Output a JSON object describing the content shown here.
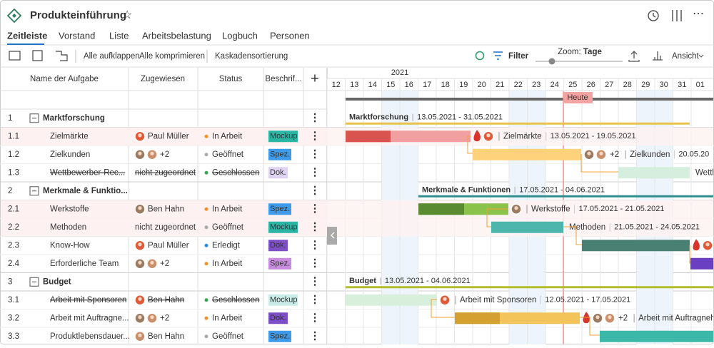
{
  "header": {
    "title": "Produkteinführung"
  },
  "tabs": [
    "Zeitleiste",
    "Vorstand",
    "Liste",
    "Arbeitsbelastung",
    "Logbuch",
    "Personen"
  ],
  "toolbar": {
    "expand": "Alle aufklappen",
    "collapse": "Alle komprimieren",
    "cascade": "Kaskadensortierung",
    "filter": "Filter",
    "zoom_label": "Zoom:",
    "zoom_value": "Tage",
    "view": "Ansicht"
  },
  "table": {
    "columns": [
      "Name der Aufgabe",
      "Zugewiesen",
      "Status",
      "Beschrif..."
    ],
    "rows": [
      {
        "num": "1",
        "name": "Marktforschung"
      },
      {
        "num": "1.1",
        "name": "Zielmärkte",
        "assignee": "Paul Müller",
        "status": "In Arbeit",
        "tag": "Mockup"
      },
      {
        "num": "1.2",
        "name": "Zielkunden",
        "assignee": "+2",
        "status": "Geöffnet",
        "tag": "Spez."
      },
      {
        "num": "1.3",
        "name": "Wettbewerber-Rec...",
        "assignee": "nicht zugeordnet",
        "status": "Geschlossen",
        "tag": "Dok."
      },
      {
        "num": "2",
        "name": "Merkmale & Funktio..."
      },
      {
        "num": "2.1",
        "name": "Werkstoffe",
        "assignee": "Ben Hahn",
        "status": "In Arbeit",
        "tag": "Spez."
      },
      {
        "num": "2.2",
        "name": "Methoden",
        "assignee": "nicht zugeordnet",
        "status": "Geöffnet",
        "tag": "Mockup"
      },
      {
        "num": "2.3",
        "name": "Know-How",
        "assignee": "Paul Müller",
        "status": "Erledigt",
        "tag": "Dok."
      },
      {
        "num": "2.4",
        "name": "Erforderliche Team",
        "assignee": "+2",
        "status": "In Arbeit",
        "tag": "Spez."
      },
      {
        "num": "3",
        "name": "Budget"
      },
      {
        "num": "3.1",
        "name": "Arbeit mit Sponsoren",
        "assignee": "Ben Hahn",
        "status": "Geschlossen",
        "tag": "Mockup"
      },
      {
        "num": "3.2",
        "name": "Arbeit mit Auftragne...",
        "assignee": "+2",
        "status": "In Arbeit",
        "tag": "Dok."
      },
      {
        "num": "3.3",
        "name": "Produktlebensdauer...",
        "assignee": "Ben Hahn",
        "status": "Geöffnet",
        "tag": "Spez."
      }
    ]
  },
  "timeline": {
    "year": "2021",
    "days": [
      "12",
      "13",
      "14",
      "15",
      "16",
      "17",
      "18",
      "19",
      "20",
      "21",
      "22",
      "23",
      "24",
      "25",
      "26",
      "27",
      "28",
      "29",
      "30",
      "31",
      "01"
    ],
    "today": "Heute"
  },
  "gantt": [
    {
      "label": "Marktforschung",
      "dates": "13.05.2021 - 31.05.2021"
    },
    {
      "label": "Zielmärkte",
      "dates": "13.05.2021 - 19.05.2021"
    },
    {
      "label": "Zielkunden",
      "dates": "20.05.20",
      "extra": "+2"
    },
    {
      "label": "Wettb"
    },
    {
      "label": "Merkmale & Funktionen",
      "dates": "17.05.2021 - 04.06.2021"
    },
    {
      "label": "Werkstoffe",
      "dates": "17.05.2021 - 21.05.2021"
    },
    {
      "label": "Methoden",
      "dates": "21.05.2021 - 24.05.2021"
    },
    {},
    {},
    {
      "label": "Budget",
      "dates": "13.05.2021 - 04.06.2021"
    },
    {
      "label": "Arbeit mit Sponsoren",
      "dates": "12.05.2021 - 17.05.2021"
    },
    {
      "label": "Arbeit mit Auftragnehm",
      "extra": "+2"
    },
    {}
  ]
}
